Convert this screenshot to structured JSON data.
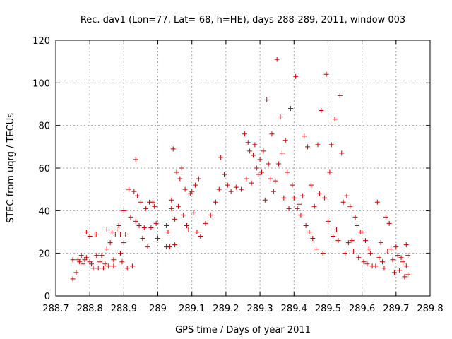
{
  "chart_data": {
    "type": "scatter",
    "title": "Rec. dav1 (Lon=77, Lat=-68, h=HE), days 288-289, 2011, window 003",
    "xlabel": "GPS time / Days of year 2011",
    "ylabel": "STEC from uqrg / TECUs",
    "xlim": [
      288.7,
      289.8
    ],
    "ylim": [
      0,
      120
    ],
    "x_ticks": [
      288.7,
      288.8,
      288.9,
      289,
      289.1,
      289.2,
      289.3,
      289.4,
      289.5,
      289.6,
      289.7,
      289.8
    ],
    "x_tick_labels": [
      "288.7",
      "288.8",
      "288.9",
      "289",
      "289.1",
      "289.2",
      "289.3",
      "289.4",
      "289.5",
      "289.6",
      "289.7",
      "289.8"
    ],
    "y_ticks": [
      0,
      20,
      40,
      60,
      80,
      100,
      120
    ],
    "y_tick_labels": [
      "0",
      "20",
      "40",
      "60",
      "80",
      "100",
      "120"
    ],
    "grid": true,
    "marker": "plus",
    "marker_color": "#cc0000",
    "points": [
      [
        288.75,
        8
      ],
      [
        288.75,
        17
      ],
      [
        288.76,
        11
      ],
      [
        288.765,
        17
      ],
      [
        288.77,
        16
      ],
      [
        288.775,
        19
      ],
      [
        288.78,
        15
      ],
      [
        288.785,
        17
      ],
      [
        288.79,
        30
      ],
      [
        288.79,
        18
      ],
      [
        288.8,
        28
      ],
      [
        288.8,
        16
      ],
      [
        288.805,
        15
      ],
      [
        288.81,
        13
      ],
      [
        288.815,
        29
      ],
      [
        288.82,
        29
      ],
      [
        288.82,
        19
      ],
      [
        288.825,
        13
      ],
      [
        288.83,
        16
      ],
      [
        288.835,
        19
      ],
      [
        288.84,
        13
      ],
      [
        288.845,
        15
      ],
      [
        288.85,
        31
      ],
      [
        288.85,
        22
      ],
      [
        288.855,
        14
      ],
      [
        288.86,
        25
      ],
      [
        288.865,
        30
      ],
      [
        288.87,
        17
      ],
      [
        288.87,
        14
      ],
      [
        288.875,
        29
      ],
      [
        288.88,
        31
      ],
      [
        288.885,
        33
      ],
      [
        288.89,
        29
      ],
      [
        288.89,
        20
      ],
      [
        288.895,
        16
      ],
      [
        288.9,
        40
      ],
      [
        288.9,
        25
      ],
      [
        288.905,
        29
      ],
      [
        288.91,
        13
      ],
      [
        288.915,
        50
      ],
      [
        288.92,
        37
      ],
      [
        288.925,
        14
      ],
      [
        288.93,
        49
      ],
      [
        288.935,
        64
      ],
      [
        288.935,
        35
      ],
      [
        288.94,
        47
      ],
      [
        288.945,
        33
      ],
      [
        288.95,
        44
      ],
      [
        288.955,
        27
      ],
      [
        288.96,
        32
      ],
      [
        288.965,
        41
      ],
      [
        288.97,
        23
      ],
      [
        288.975,
        44
      ],
      [
        288.98,
        32
      ],
      [
        288.985,
        44
      ],
      [
        288.99,
        42
      ],
      [
        288.995,
        34
      ],
      [
        289.0,
        27
      ],
      [
        289.025,
        33
      ],
      [
        289.025,
        23
      ],
      [
        289.03,
        30
      ],
      [
        289.035,
        23
      ],
      [
        289.04,
        41
      ],
      [
        289.04,
        45
      ],
      [
        289.045,
        69
      ],
      [
        289.05,
        36
      ],
      [
        289.05,
        24
      ],
      [
        289.055,
        58
      ],
      [
        289.06,
        42
      ],
      [
        289.065,
        55
      ],
      [
        289.07,
        60
      ],
      [
        289.075,
        38
      ],
      [
        289.08,
        50
      ],
      [
        289.085,
        33
      ],
      [
        289.09,
        31
      ],
      [
        289.095,
        48
      ],
      [
        289.1,
        49
      ],
      [
        289.105,
        39
      ],
      [
        289.11,
        52
      ],
      [
        289.115,
        30
      ],
      [
        289.12,
        55
      ],
      [
        289.125,
        28
      ],
      [
        289.14,
        34
      ],
      [
        289.155,
        38
      ],
      [
        289.17,
        44
      ],
      [
        289.18,
        50
      ],
      [
        289.185,
        65
      ],
      [
        289.195,
        57
      ],
      [
        289.205,
        52
      ],
      [
        289.215,
        49
      ],
      [
        289.23,
        51
      ],
      [
        289.245,
        50
      ],
      [
        289.255,
        76
      ],
      [
        289.26,
        55
      ],
      [
        289.265,
        72
      ],
      [
        289.27,
        68
      ],
      [
        289.275,
        53
      ],
      [
        289.28,
        66
      ],
      [
        289.285,
        71
      ],
      [
        289.29,
        60
      ],
      [
        289.295,
        57
      ],
      [
        289.3,
        64
      ],
      [
        289.305,
        58
      ],
      [
        289.31,
        68
      ],
      [
        289.315,
        45
      ],
      [
        289.32,
        92
      ],
      [
        289.325,
        62
      ],
      [
        289.33,
        55
      ],
      [
        289.335,
        76
      ],
      [
        289.34,
        49
      ],
      [
        289.345,
        54
      ],
      [
        289.35,
        111
      ],
      [
        289.355,
        62
      ],
      [
        289.36,
        84
      ],
      [
        289.365,
        67
      ],
      [
        289.37,
        46
      ],
      [
        289.375,
        73
      ],
      [
        289.38,
        58
      ],
      [
        289.385,
        41
      ],
      [
        289.39,
        88
      ],
      [
        289.395,
        52
      ],
      [
        289.4,
        46
      ],
      [
        289.405,
        103
      ],
      [
        289.41,
        41
      ],
      [
        289.415,
        43
      ],
      [
        289.42,
        38
      ],
      [
        289.425,
        47
      ],
      [
        289.43,
        75
      ],
      [
        289.435,
        33
      ],
      [
        289.44,
        70
      ],
      [
        289.445,
        30
      ],
      [
        289.45,
        52
      ],
      [
        289.455,
        27
      ],
      [
        289.46,
        42
      ],
      [
        289.465,
        22
      ],
      [
        289.47,
        71
      ],
      [
        289.475,
        48
      ],
      [
        289.48,
        87
      ],
      [
        289.485,
        20
      ],
      [
        289.49,
        46
      ],
      [
        289.495,
        104
      ],
      [
        289.5,
        35
      ],
      [
        289.505,
        58
      ],
      [
        289.51,
        71
      ],
      [
        289.515,
        28
      ],
      [
        289.52,
        83
      ],
      [
        289.525,
        31
      ],
      [
        289.53,
        26
      ],
      [
        289.535,
        94
      ],
      [
        289.54,
        67
      ],
      [
        289.545,
        44
      ],
      [
        289.55,
        20
      ],
      [
        289.555,
        47
      ],
      [
        289.56,
        25
      ],
      [
        289.565,
        42
      ],
      [
        289.57,
        26
      ],
      [
        289.575,
        21
      ],
      [
        289.58,
        37
      ],
      [
        289.585,
        33
      ],
      [
        289.59,
        18
      ],
      [
        289.595,
        30
      ],
      [
        289.6,
        30
      ],
      [
        289.605,
        16
      ],
      [
        289.61,
        26
      ],
      [
        289.615,
        15
      ],
      [
        289.62,
        22
      ],
      [
        289.625,
        20
      ],
      [
        289.63,
        14
      ],
      [
        289.64,
        14
      ],
      [
        289.645,
        44
      ],
      [
        289.65,
        18
      ],
      [
        289.655,
        25
      ],
      [
        289.66,
        16
      ],
      [
        289.665,
        13
      ],
      [
        289.67,
        37
      ],
      [
        289.675,
        21
      ],
      [
        289.68,
        34
      ],
      [
        289.685,
        22
      ],
      [
        289.69,
        17
      ],
      [
        289.695,
        11
      ],
      [
        289.7,
        23
      ],
      [
        289.705,
        19
      ],
      [
        289.71,
        12
      ],
      [
        289.715,
        18
      ],
      [
        289.72,
        16
      ],
      [
        289.725,
        9
      ],
      [
        289.73,
        24
      ],
      [
        289.73,
        14
      ],
      [
        289.735,
        10
      ],
      [
        289.735,
        19
      ]
    ]
  }
}
